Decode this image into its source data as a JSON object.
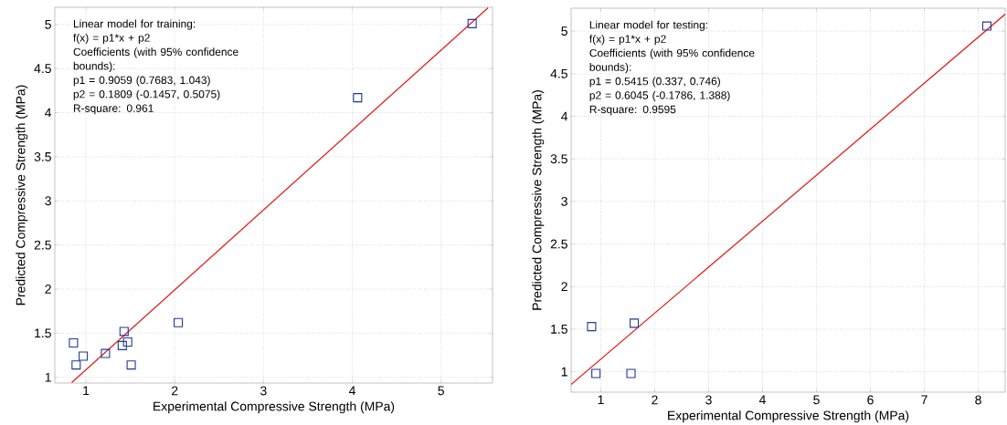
{
  "chart_data": [
    {
      "type": "scatter",
      "xlabel": "Experimental Compressive Strength (MPa)",
      "ylabel": "Predicted Compressive Strength (MPa)",
      "annotations": [
        "Linear model for training:",
        "f(x) = p1*x + p2",
        "Coefficients (with 95% confidence bounds):",
        "p1 = 0.9059 (0.7683, 1.043)",
        "p2 = 0.1809 (-0.1457, 0.5075)",
        "R-square: 0.961"
      ],
      "series": [
        {
          "color": "#1f3a93",
          "marker": "square",
          "x": [
            0.86,
            0.89,
            0.97,
            1.22,
            1.43,
            1.41,
            1.47,
            1.51,
            2.04,
            4.06,
            5.35
          ],
          "values": [
            1.39,
            1.14,
            1.24,
            1.27,
            1.52,
            1.36,
            1.4,
            1.14,
            1.62,
            4.17,
            5.01
          ]
        },
        {
          "type": "line",
          "color": "#e02020",
          "marker": "none",
          "line_style": "solid",
          "x": [
            0.84,
            5.53
          ],
          "values": [
            0.94,
            5.19
          ]
        }
      ],
      "xlim": [
        0.65,
        5.58
      ],
      "ylim": [
        0.935,
        5.195
      ],
      "xticks": [
        1,
        2,
        3,
        4,
        5
      ],
      "yticks": [
        1,
        1.5,
        2,
        2.5,
        3,
        3.5,
        4,
        4.5,
        5
      ],
      "grid": true
    },
    {
      "type": "scatter",
      "xlabel": "Experimental Compressive Strength (MPa)",
      "ylabel": "Predicted Compressive Strength (MPa)",
      "annotations": [
        "Linear model for testing:",
        "f(x) = p1*x + p2",
        "Coefficients (with 95% confidence bounds):",
        "p1 = 0.5415 (0.337, 0.746)",
        "p2 = 0.6045 (-0.1786, 1.388)",
        "R-square: 0.9595"
      ],
      "series": [
        {
          "color": "#1f3a93",
          "marker": "square",
          "x": [
            0.83,
            0.91,
            1.62,
            1.56,
            8.16
          ],
          "values": [
            1.53,
            0.98,
            1.57,
            0.98,
            5.06
          ]
        },
        {
          "type": "line",
          "color": "#e02020",
          "marker": "none",
          "line_style": "solid",
          "x": [
            0.45,
            8.5
          ],
          "values": [
            0.85,
            5.2
          ]
        }
      ],
      "xlim": [
        0.45,
        8.5
      ],
      "ylim": [
        0.76,
        5.27
      ],
      "xticks": [
        1,
        2,
        3,
        4,
        5,
        6,
        7,
        8
      ],
      "yticks": [
        1,
        1.5,
        2,
        2.5,
        3,
        3.5,
        4,
        4.5,
        5
      ],
      "grid": true
    }
  ]
}
